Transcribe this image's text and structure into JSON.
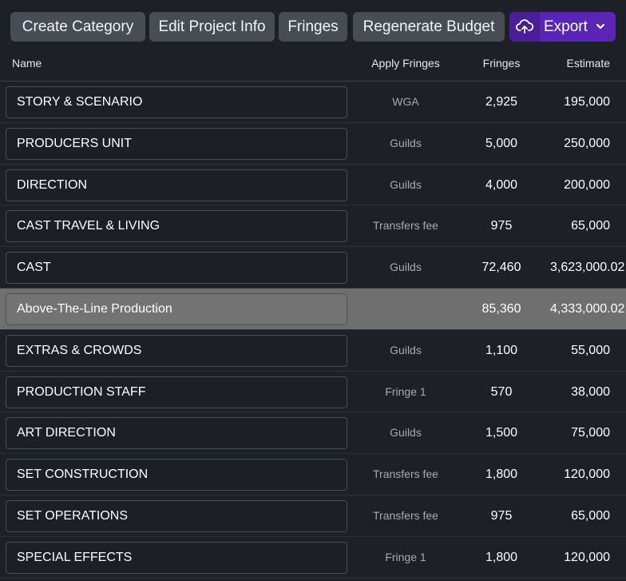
{
  "toolbar": {
    "create_category": "Create Category",
    "edit_project_info": "Edit Project Info",
    "fringes": "Fringes",
    "regenerate_budget": "Regenerate Budget",
    "export": "Export",
    "export_icon": "cloud-upload-icon",
    "export_chevron_icon": "chevron-down-icon"
  },
  "table": {
    "columns": {
      "name": "Name",
      "apply_fringes": "Apply Fringes",
      "fringes": "Fringes",
      "estimate": "Estimate"
    },
    "rows": [
      {
        "name": "STORY & SCENARIO",
        "apply": "WGA",
        "fringes": "2,925",
        "estimate": "195,000"
      },
      {
        "name": "PRODUCERS UNIT",
        "apply": "Guilds",
        "fringes": "5,000",
        "estimate": "250,000"
      },
      {
        "name": "DIRECTION",
        "apply": "Guilds",
        "fringes": "4,000",
        "estimate": "200,000"
      },
      {
        "name": "CAST TRAVEL & LIVING",
        "apply": "Transfers fee",
        "fringes": "975",
        "estimate": "65,000"
      },
      {
        "name": "CAST",
        "apply": "Guilds",
        "fringes": "72,460",
        "estimate": "3,623,000.02"
      },
      {
        "name": "Above-The-Line Production",
        "apply": "",
        "fringes": "85,360",
        "estimate": "4,333,000.02"
      },
      {
        "name": "EXTRAS & CROWDS",
        "apply": "Guilds",
        "fringes": "1,100",
        "estimate": "55,000"
      },
      {
        "name": "PRODUCTION STAFF",
        "apply": "Fringe 1",
        "fringes": "570",
        "estimate": "38,000"
      },
      {
        "name": "ART DIRECTION",
        "apply": "Guilds",
        "fringes": "1,500",
        "estimate": "75,000"
      },
      {
        "name": "SET CONSTRUCTION",
        "apply": "Transfers fee",
        "fringes": "1,800",
        "estimate": "120,000"
      },
      {
        "name": "SET OPERATIONS",
        "apply": "Transfers fee",
        "fringes": "975",
        "estimate": "65,000"
      },
      {
        "name": "SPECIAL EFFECTS",
        "apply": "Fringe 1",
        "fringes": "1,800",
        "estimate": "120,000"
      }
    ]
  },
  "colors": {
    "background": "#1d2026",
    "button": "#474c55",
    "export_button": "#5a24b4",
    "subtotal_row": "#6f6f70"
  }
}
